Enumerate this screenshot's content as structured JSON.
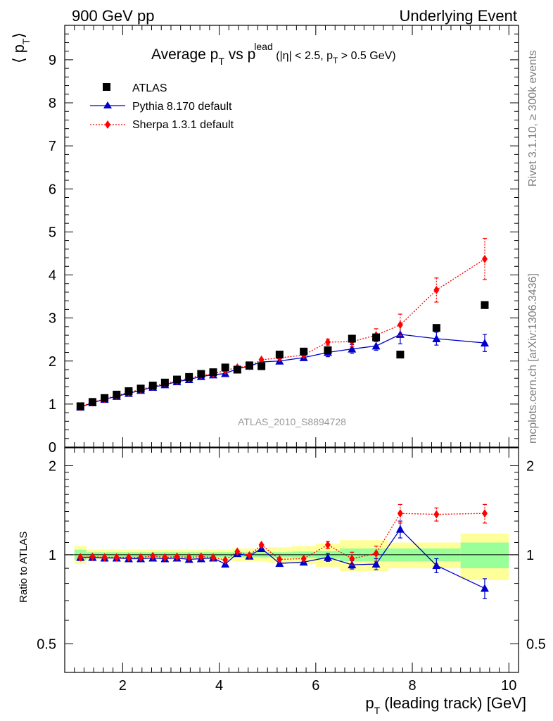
{
  "header": {
    "left": "900 GeV pp",
    "right": "Underlying Event"
  },
  "side_labels": {
    "rivet": "Rivet 3.1.10, ≥ 300k events",
    "mcplots": "mcplots.cern.ch [arXiv:1306.3436]"
  },
  "watermark": "ATLAS_2010_S8894728",
  "title": {
    "p1": "Average p",
    "p1_sub": "T",
    "p2": " vs p",
    "p2_sub": "T",
    "p2_sup": "lead",
    "p3": " (|η| < 2.5, p",
    "p3_sub": "T",
    "p4": " > 0.5 GeV)"
  },
  "ylabel_main": "⟨ p",
  "ylabel_main_sub": "T",
  "ylabel_main_end": "⟩",
  "ylabel_ratio": "Ratio to ATLAS",
  "xlabel": {
    "p": "p",
    "sub": "T",
    "rest": " (leading track) [GeV]"
  },
  "legend": {
    "atlas": "ATLAS",
    "pythia": "Pythia 8.170 default",
    "sherpa": "Sherpa 1.3.1 default"
  },
  "colors": {
    "atlas": "#000000",
    "pythia": "#0000cc",
    "sherpa": "#ff0000",
    "band_inner": "#99ff99",
    "band_outer": "#ffff99"
  },
  "chart_data": [
    {
      "type": "scatter",
      "xlim": [
        0.8,
        10.2
      ],
      "ylim": [
        0,
        9.8
      ],
      "yticks": [
        0,
        1,
        2,
        3,
        4,
        5,
        6,
        7,
        8,
        9
      ],
      "ytick_labels": [
        "0",
        "1",
        "2",
        "3",
        "4",
        "5",
        "6",
        "7",
        "8",
        "9"
      ],
      "x": [
        1.125,
        1.375,
        1.625,
        1.875,
        2.125,
        2.375,
        2.625,
        2.875,
        3.125,
        3.375,
        3.625,
        3.875,
        4.125,
        4.375,
        4.625,
        4.875,
        5.25,
        5.75,
        6.25,
        6.75,
        7.25,
        7.75,
        8.5,
        9.5
      ],
      "series": [
        {
          "name": "ATLAS",
          "marker": "square",
          "values": [
            0.95,
            1.05,
            1.14,
            1.22,
            1.3,
            1.36,
            1.43,
            1.5,
            1.57,
            1.63,
            1.7,
            1.74,
            1.85,
            1.8,
            1.9,
            1.88,
            2.15,
            2.22,
            2.25,
            2.52,
            2.55,
            2.15,
            2.77,
            3.3
          ]
        },
        {
          "name": "Pythia 8.170 default",
          "marker": "triangle",
          "line": "solid",
          "values": [
            0.93,
            1.03,
            1.11,
            1.18,
            1.25,
            1.32,
            1.39,
            1.45,
            1.52,
            1.57,
            1.64,
            1.68,
            1.71,
            1.82,
            1.88,
            1.98,
            2.0,
            2.08,
            2.2,
            2.28,
            2.35,
            2.62,
            2.52,
            2.42
          ],
          "errors": [
            0,
            0,
            0,
            0,
            0,
            0,
            0,
            0,
            0,
            0,
            0,
            0,
            0,
            0,
            0,
            0,
            0,
            0,
            0.1,
            0.1,
            0.1,
            0.22,
            0.15,
            0.2
          ]
        },
        {
          "name": "Sherpa 1.3.1 default",
          "marker": "diamond",
          "line": "dotted",
          "values": [
            0.94,
            1.04,
            1.12,
            1.2,
            1.27,
            1.34,
            1.41,
            1.48,
            1.54,
            1.6,
            1.67,
            1.7,
            1.78,
            1.85,
            1.88,
            2.03,
            2.07,
            2.14,
            2.44,
            2.45,
            2.6,
            2.84,
            3.65,
            4.37
          ],
          "errors": [
            0,
            0,
            0,
            0,
            0,
            0,
            0,
            0,
            0,
            0,
            0,
            0,
            0,
            0,
            0,
            0,
            0,
            0,
            0.07,
            0.12,
            0.15,
            0.25,
            0.28,
            0.48
          ]
        }
      ]
    },
    {
      "type": "scatter",
      "xlabel": "p_T (leading track) [GeV]",
      "ylabel": "Ratio to ATLAS",
      "xlim": [
        0.8,
        10.2
      ],
      "ylim": [
        0.4,
        2.3
      ],
      "log_y": true,
      "yticks": [
        0.5,
        1,
        2
      ],
      "ytick_labels": [
        "0.5",
        "1",
        "2"
      ],
      "xticks": [
        2,
        4,
        6,
        8,
        10
      ],
      "xtick_labels": [
        "2",
        "4",
        "6",
        "8",
        "10"
      ],
      "x": [
        1.125,
        1.375,
        1.625,
        1.875,
        2.125,
        2.375,
        2.625,
        2.875,
        3.125,
        3.375,
        3.625,
        3.875,
        4.125,
        4.375,
        4.625,
        4.875,
        5.25,
        5.75,
        6.25,
        6.75,
        7.25,
        7.75,
        8.5,
        9.5
      ],
      "bands": {
        "edges": [
          1.0,
          1.25,
          1.5,
          1.75,
          2.0,
          2.25,
          2.5,
          2.75,
          3.0,
          3.25,
          3.5,
          3.75,
          4.0,
          4.25,
          4.5,
          4.75,
          5.0,
          5.5,
          6.0,
          6.5,
          7.0,
          7.5,
          8.0,
          9.0,
          10.0
        ],
        "inner": [
          0.04,
          0.02,
          0.02,
          0.02,
          0.02,
          0.02,
          0.02,
          0.02,
          0.02,
          0.02,
          0.02,
          0.02,
          0.02,
          0.02,
          0.02,
          0.02,
          0.02,
          0.025,
          0.03,
          0.05,
          0.05,
          0.05,
          0.05,
          0.1
        ],
        "outer": [
          0.07,
          0.04,
          0.04,
          0.04,
          0.04,
          0.04,
          0.04,
          0.04,
          0.04,
          0.04,
          0.04,
          0.04,
          0.04,
          0.05,
          0.05,
          0.05,
          0.06,
          0.07,
          0.09,
          0.12,
          0.12,
          0.1,
          0.1,
          0.18
        ]
      },
      "series": [
        {
          "name": "Pythia 8.170 default",
          "marker": "triangle",
          "line": "solid",
          "values": [
            0.98,
            0.98,
            0.975,
            0.975,
            0.97,
            0.97,
            0.975,
            0.97,
            0.975,
            0.965,
            0.97,
            0.975,
            0.93,
            1.01,
            0.99,
            1.05,
            0.935,
            0.945,
            0.98,
            0.925,
            0.93,
            1.22,
            0.92,
            0.77
          ],
          "errors": [
            0,
            0,
            0,
            0,
            0,
            0,
            0,
            0,
            0,
            0,
            0,
            0,
            0,
            0,
            0,
            0,
            0,
            0,
            0.03,
            0.03,
            0.04,
            0.08,
            0.05,
            0.06
          ]
        },
        {
          "name": "Sherpa 1.3.1 default",
          "marker": "diamond",
          "line": "dotted",
          "values": [
            0.98,
            0.985,
            0.98,
            0.98,
            0.98,
            0.98,
            0.99,
            0.98,
            0.985,
            0.98,
            0.985,
            0.98,
            0.96,
            1.025,
            0.995,
            1.08,
            0.965,
            0.97,
            1.08,
            0.97,
            1.01,
            1.38,
            1.37,
            1.38
          ],
          "errors": [
            0,
            0,
            0,
            0,
            0,
            0,
            0,
            0,
            0,
            0,
            0,
            0,
            0,
            0,
            0,
            0,
            0,
            0,
            0.03,
            0.05,
            0.06,
            0.1,
            0.07,
            0.1
          ]
        }
      ]
    }
  ]
}
